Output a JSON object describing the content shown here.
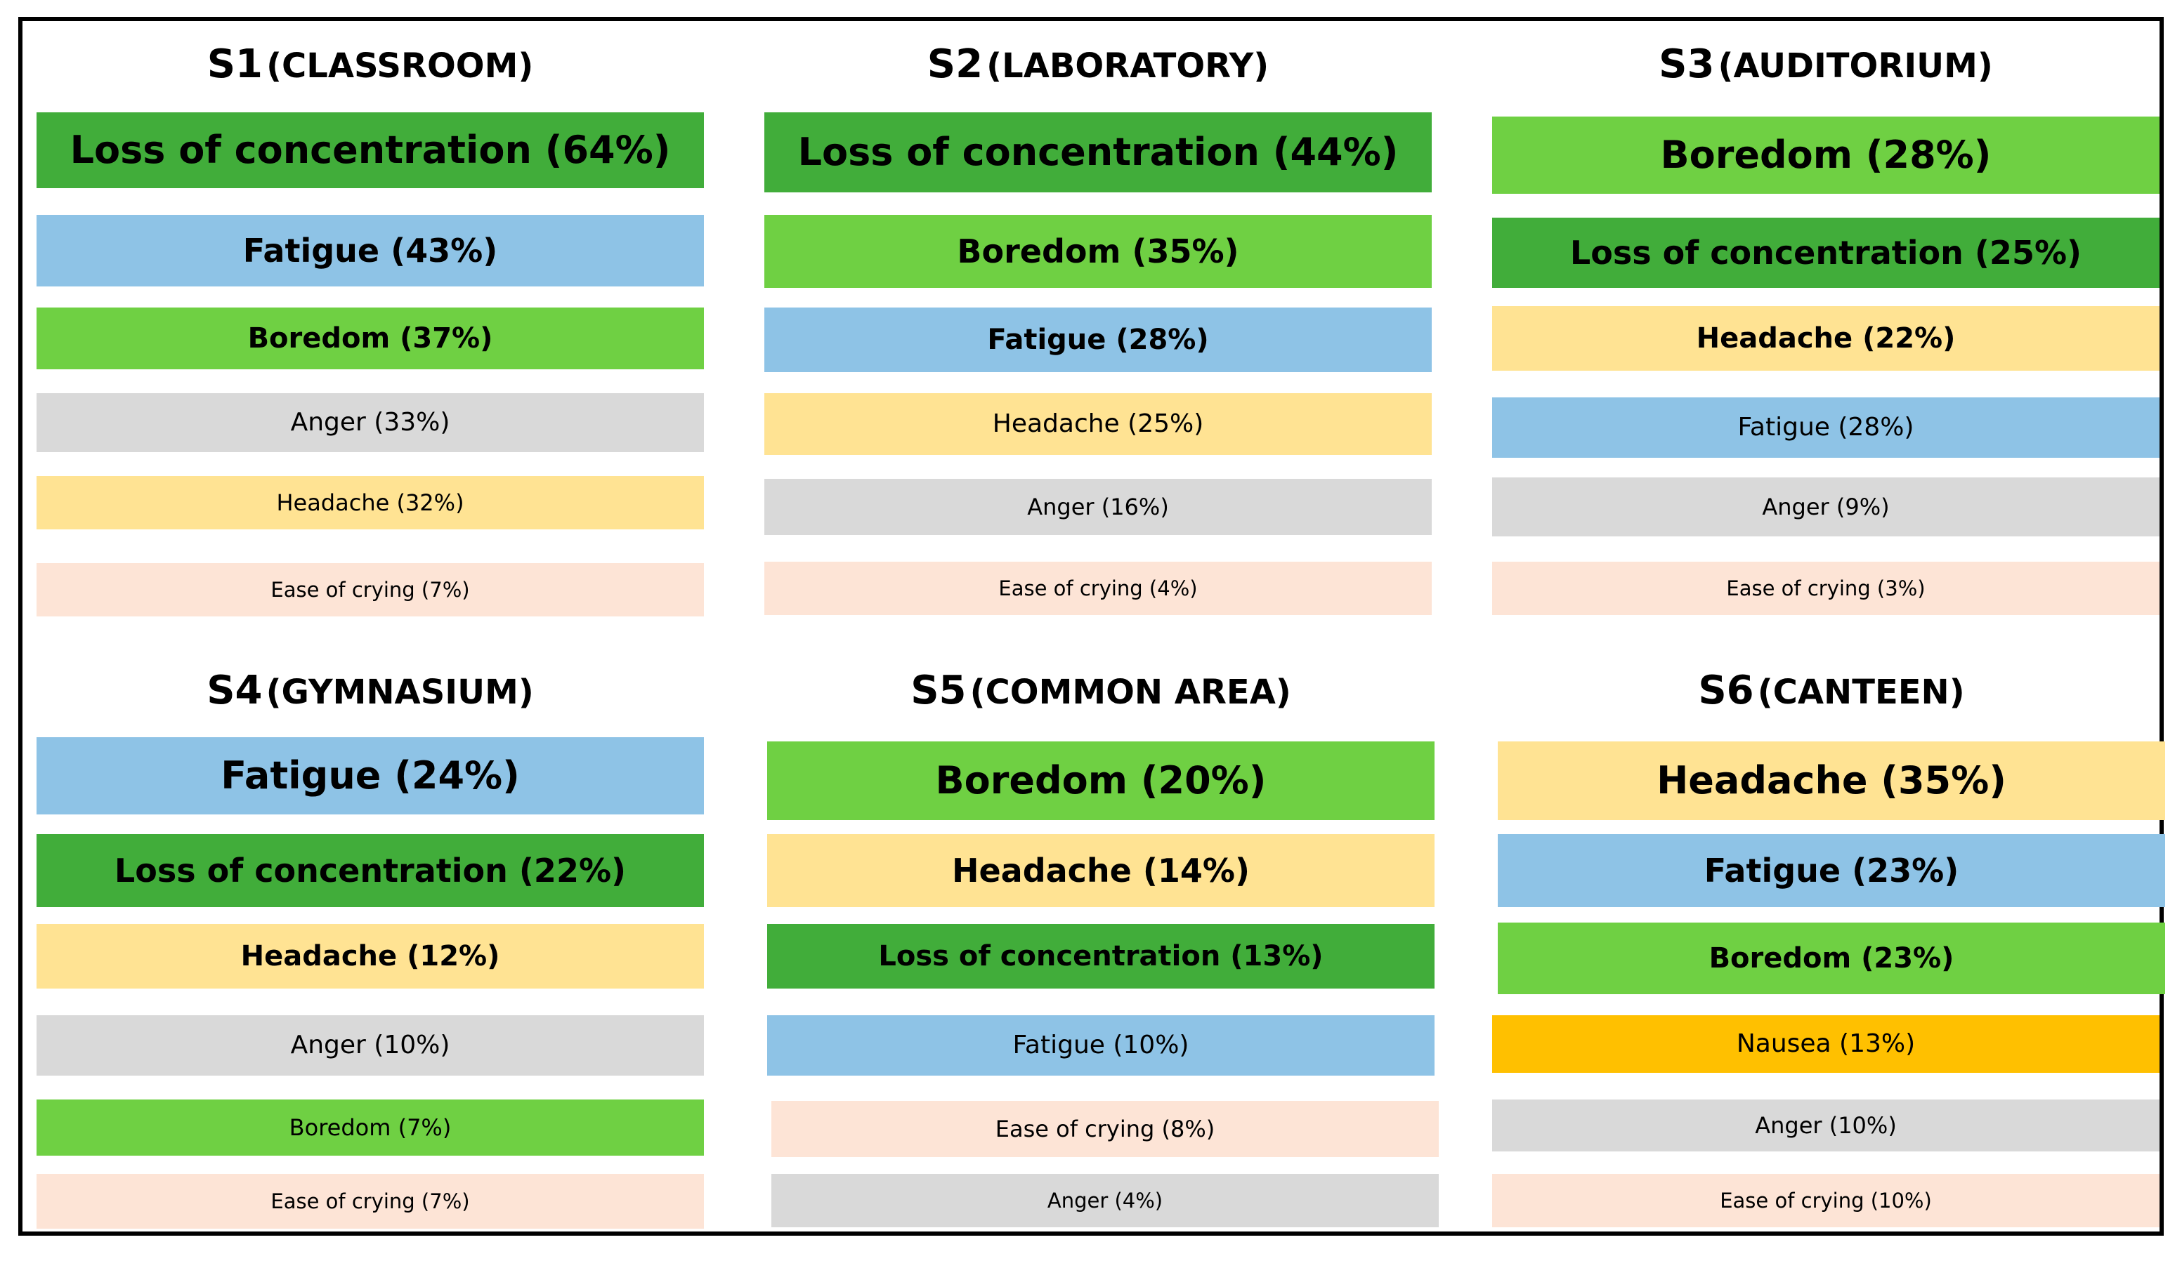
{
  "colors": {
    "loss_of_concentration": "#41ad3a",
    "fatigue": "#8ec3e6",
    "boredom": "#6fd043",
    "anger": "#d9d9d9",
    "headache": "#ffe393",
    "ease_of_crying": "#fde4d6",
    "nausea": "#ffc000"
  },
  "panels": [
    {
      "code": "S1",
      "place": "CLASSROOM",
      "bars": [
        {
          "label": "Loss of concentration (64%)",
          "symptom": "Loss of concentration",
          "percent": 64,
          "color": "#41ad3a"
        },
        {
          "label": "Fatigue (43%)",
          "symptom": "Fatigue",
          "percent": 43,
          "color": "#8ec3e6"
        },
        {
          "label": "Boredom (37%)",
          "symptom": "Boredom",
          "percent": 37,
          "color": "#6fd043"
        },
        {
          "label": "Anger (33%)",
          "symptom": "Anger",
          "percent": 33,
          "color": "#d9d9d9"
        },
        {
          "label": "Headache (32%)",
          "symptom": "Headache",
          "percent": 32,
          "color": "#ffe393"
        },
        {
          "label": "Ease of crying (7%)",
          "symptom": "Ease of crying",
          "percent": 7,
          "color": "#fde4d6"
        }
      ]
    },
    {
      "code": "S2",
      "place": "LABORATORY",
      "bars": [
        {
          "label": "Loss of concentration (44%)",
          "symptom": "Loss of concentration",
          "percent": 44,
          "color": "#41ad3a"
        },
        {
          "label": "Boredom (35%)",
          "symptom": "Boredom",
          "percent": 35,
          "color": "#6fd043"
        },
        {
          "label": "Fatigue (28%)",
          "symptom": "Fatigue",
          "percent": 28,
          "color": "#8ec3e6"
        },
        {
          "label": "Headache (25%)",
          "symptom": "Headache",
          "percent": 25,
          "color": "#ffe393"
        },
        {
          "label": "Anger (16%)",
          "symptom": "Anger",
          "percent": 16,
          "color": "#d9d9d9"
        },
        {
          "label": "Ease of crying (4%)",
          "symptom": "Ease of crying",
          "percent": 4,
          "color": "#fde4d6"
        }
      ]
    },
    {
      "code": "S3",
      "place": "AUDITORIUM",
      "bars": [
        {
          "label": "Boredom (28%)",
          "symptom": "Boredom",
          "percent": 28,
          "color": "#6fd043"
        },
        {
          "label": "Loss of concentration (25%)",
          "symptom": "Loss of concentration",
          "percent": 25,
          "color": "#41ad3a"
        },
        {
          "label": "Headache (22%)",
          "symptom": "Headache",
          "percent": 22,
          "color": "#ffe393"
        },
        {
          "label": "Fatigue (28%)",
          "symptom": "Fatigue",
          "percent": 28,
          "color": "#8ec3e6"
        },
        {
          "label": "Anger (9%)",
          "symptom": "Anger",
          "percent": 9,
          "color": "#d9d9d9"
        },
        {
          "label": "Ease of crying (3%)",
          "symptom": "Ease of crying",
          "percent": 3,
          "color": "#fde4d6"
        }
      ]
    },
    {
      "code": "S4",
      "place": "GYMNASIUM",
      "bars": [
        {
          "label": "Fatigue (24%)",
          "symptom": "Fatigue",
          "percent": 24,
          "color": "#8ec3e6"
        },
        {
          "label": "Loss of concentration (22%)",
          "symptom": "Loss of concentration",
          "percent": 22,
          "color": "#41ad3a"
        },
        {
          "label": "Headache (12%)",
          "symptom": "Headache",
          "percent": 12,
          "color": "#ffe393"
        },
        {
          "label": "Anger (10%)",
          "symptom": "Anger",
          "percent": 10,
          "color": "#d9d9d9"
        },
        {
          "label": "Boredom (7%)",
          "symptom": "Boredom",
          "percent": 7,
          "color": "#6fd043"
        },
        {
          "label": "Ease of crying (7%)",
          "symptom": "Ease of crying",
          "percent": 7,
          "color": "#fde4d6"
        }
      ]
    },
    {
      "code": "S5",
      "place": "COMMON AREA",
      "bars": [
        {
          "label": "Boredom (20%)",
          "symptom": "Boredom",
          "percent": 20,
          "color": "#6fd043"
        },
        {
          "label": "Headache (14%)",
          "symptom": "Headache",
          "percent": 14,
          "color": "#ffe393"
        },
        {
          "label": "Loss of concentration (13%)",
          "symptom": "Loss of concentration",
          "percent": 13,
          "color": "#41ad3a"
        },
        {
          "label": "Fatigue (10%)",
          "symptom": "Fatigue",
          "percent": 10,
          "color": "#8ec3e6"
        },
        {
          "label": "Ease of crying (8%)",
          "symptom": "Ease of crying",
          "percent": 8,
          "color": "#fde4d6"
        },
        {
          "label": "Anger (4%)",
          "symptom": "Anger",
          "percent": 4,
          "color": "#d9d9d9"
        }
      ]
    },
    {
      "code": "S6",
      "place": "CANTEEN",
      "bars": [
        {
          "label": "Headache (35%)",
          "symptom": "Headache",
          "percent": 35,
          "color": "#ffe393"
        },
        {
          "label": "Fatigue (23%)",
          "symptom": "Fatigue",
          "percent": 23,
          "color": "#8ec3e6"
        },
        {
          "label": "Boredom (23%)",
          "symptom": "Boredom",
          "percent": 23,
          "color": "#6fd043"
        },
        {
          "label": "Nausea (13%)",
          "symptom": "Nausea",
          "percent": 13,
          "color": "#ffc000"
        },
        {
          "label": "Anger (10%)",
          "symptom": "Anger",
          "percent": 10,
          "color": "#d9d9d9"
        },
        {
          "label": "Ease of crying (10%)",
          "symptom": "Ease of crying",
          "percent": 10,
          "color": "#fde4d6"
        }
      ]
    }
  ]
}
